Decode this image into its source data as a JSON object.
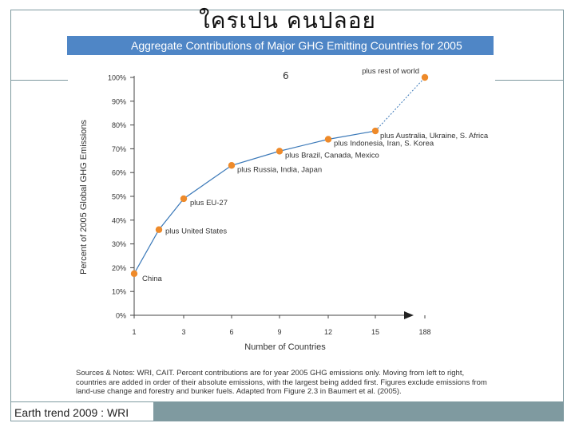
{
  "slide": {
    "title": "ใครเปน  คนปลอย",
    "number": "6",
    "credit": "Earth trend 2009 : WRI"
  },
  "figure": {
    "header": "Aggregate Contributions of Major GHG Emitting Countries for 2005",
    "notes": "Sources & Notes: WRI, CAIT.  Percent contributions are for year 2005 GHG emissions only.  Moving from left to right, countries are added in order of their absolute emissions, with the largest being added first.  Figures exclude emissions from land-use change and forestry and bunker fuels. Adapted from Figure 2.3 in Baumert et al. (2005).",
    "colors": {
      "header_bg": "#4f86c6",
      "line": "#3a78b8",
      "marker": "#ee8a2a",
      "frame": "#7f9aa0"
    }
  },
  "chart_data": {
    "type": "line",
    "xlabel": "Number of Countries",
    "ylabel": "Percent of 2005 Global GHG Emissions",
    "x_ticks": [
      "1",
      "3",
      "6",
      "9",
      "12",
      "15",
      "188"
    ],
    "y_ticks": [
      "0%",
      "10%",
      "20%",
      "30%",
      "40%",
      "50%",
      "60%",
      "70%",
      "80%",
      "90%",
      "100%"
    ],
    "ylim": [
      0,
      100
    ],
    "grid": false,
    "points": [
      {
        "x": "1",
        "y": 17.5,
        "label": "China"
      },
      {
        "x": "2",
        "y": 36,
        "label": "plus United States"
      },
      {
        "x": "3",
        "y": 49,
        "label": "plus  EU-27"
      },
      {
        "x": "6",
        "y": 63,
        "label": "plus Russia, India, Japan"
      },
      {
        "x": "9",
        "y": 69,
        "label": "plus Brazil, Canada, Mexico"
      },
      {
        "x": "12",
        "y": 74,
        "label": "plus Indonesia, Iran, S. Korea"
      },
      {
        "x": "15",
        "y": 77.5,
        "label": "plus Australia, Ukraine, S. Africa"
      },
      {
        "x": "188",
        "y": 100,
        "label": "plus rest of world"
      }
    ]
  }
}
